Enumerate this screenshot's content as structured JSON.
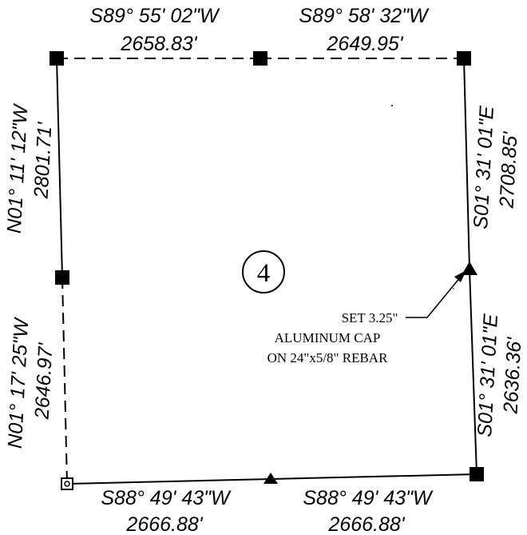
{
  "section": {
    "number": "4"
  },
  "north_line": {
    "west_half": {
      "bearing": "S89° 55' 02\"W",
      "distance": "2658.83'"
    },
    "east_half": {
      "bearing": "S89° 58' 32\"W",
      "distance": "2649.95'"
    }
  },
  "west_line": {
    "north_half": {
      "bearing": "N01° 11' 12\"W",
      "distance": "2801.71'"
    },
    "south_half": {
      "bearing": "N01° 17' 25\"W",
      "distance": "2646.97'"
    }
  },
  "east_line": {
    "north_half": {
      "bearing": "S01° 31' 01\"E",
      "distance": "2708.85'"
    },
    "south_half": {
      "bearing": "S01° 31' 01\"E",
      "distance": "2636.36'"
    }
  },
  "south_line": {
    "west_half": {
      "bearing": "S88° 49' 43\"W",
      "distance": "2666.88'"
    },
    "east_half": {
      "bearing": "S88° 49' 43\"W",
      "distance": "2666.88'"
    }
  },
  "monument_note": {
    "line1": "SET 3.25\"",
    "line2": "ALUMINUM CAP",
    "line3": "ON 24\"x5/8\" REBAR"
  }
}
